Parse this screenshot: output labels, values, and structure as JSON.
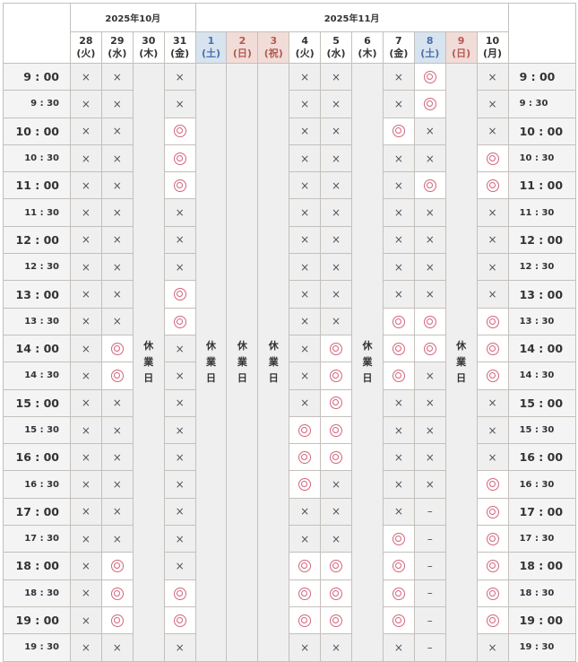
{
  "months": [
    {
      "label": "2025年10月",
      "span": 4
    },
    {
      "label": "2025年11月",
      "span": 10
    }
  ],
  "days": [
    {
      "d": "28",
      "w": "(火)",
      "type": "weekday",
      "closed": false
    },
    {
      "d": "29",
      "w": "(水)",
      "type": "weekday",
      "closed": false
    },
    {
      "d": "30",
      "w": "(木)",
      "type": "weekday",
      "closed": true
    },
    {
      "d": "31",
      "w": "(金)",
      "type": "weekday",
      "closed": false
    },
    {
      "d": "1",
      "w": "(土)",
      "type": "sat",
      "closed": true
    },
    {
      "d": "2",
      "w": "(日)",
      "type": "sun",
      "closed": true
    },
    {
      "d": "3",
      "w": "(祝)",
      "type": "sun",
      "closed": true
    },
    {
      "d": "4",
      "w": "(火)",
      "type": "weekday",
      "closed": false
    },
    {
      "d": "5",
      "w": "(水)",
      "type": "weekday",
      "closed": false
    },
    {
      "d": "6",
      "w": "(木)",
      "type": "weekday",
      "closed": true
    },
    {
      "d": "7",
      "w": "(金)",
      "type": "weekday",
      "closed": false
    },
    {
      "d": "8",
      "w": "(土)",
      "type": "sat",
      "closed": false
    },
    {
      "d": "9",
      "w": "(日)",
      "type": "sun",
      "closed": true
    },
    {
      "d": "10",
      "w": "(月)",
      "type": "weekday",
      "closed": false
    }
  ],
  "closed_label": "休\n業\n日",
  "symbols": {
    "available": "◎",
    "unavailable": "×",
    "none": "–"
  },
  "colors": {
    "available": "#d3657b",
    "saturday_bg": "#d7e3ee",
    "sunday_bg": "#f1dcd8",
    "unavailable_bg": "#efefef"
  },
  "times": [
    "9 : 00",
    "9 : 30",
    "10 : 00",
    "10 : 30",
    "11 : 00",
    "11 : 30",
    "12 : 00",
    "12 : 30",
    "13 : 00",
    "13 : 30",
    "14 : 00",
    "14 : 30",
    "15 : 00",
    "15 : 30",
    "16 : 00",
    "16 : 30",
    "17 : 00",
    "17 : 30",
    "18 : 00",
    "18 : 30",
    "19 : 00",
    "19 : 30"
  ],
  "open_columns": [
    "28",
    "29",
    "31",
    "4",
    "5",
    "7",
    "8",
    "10"
  ],
  "slots": [
    "xxxxxxox",
    "xxxxxxox",
    "xxoxxoxx",
    "xxoxxxxo",
    "xxoxxxoo",
    "xxxxxxxx",
    "xxxxxxxx",
    "xxxxxxxx",
    "xxoxxxxx",
    "xxoxxooo",
    "xoxxoooo",
    "xoxxooxo",
    "xxxxoxxx",
    "xxxooxxx",
    "xxxooxxx",
    "xxxoxxxo",
    "xxxxxx-o",
    "xxxxxo-o",
    "xoxooo-o",
    "xooooo-o",
    "xooooo-o",
    "xxxxxx-x"
  ]
}
